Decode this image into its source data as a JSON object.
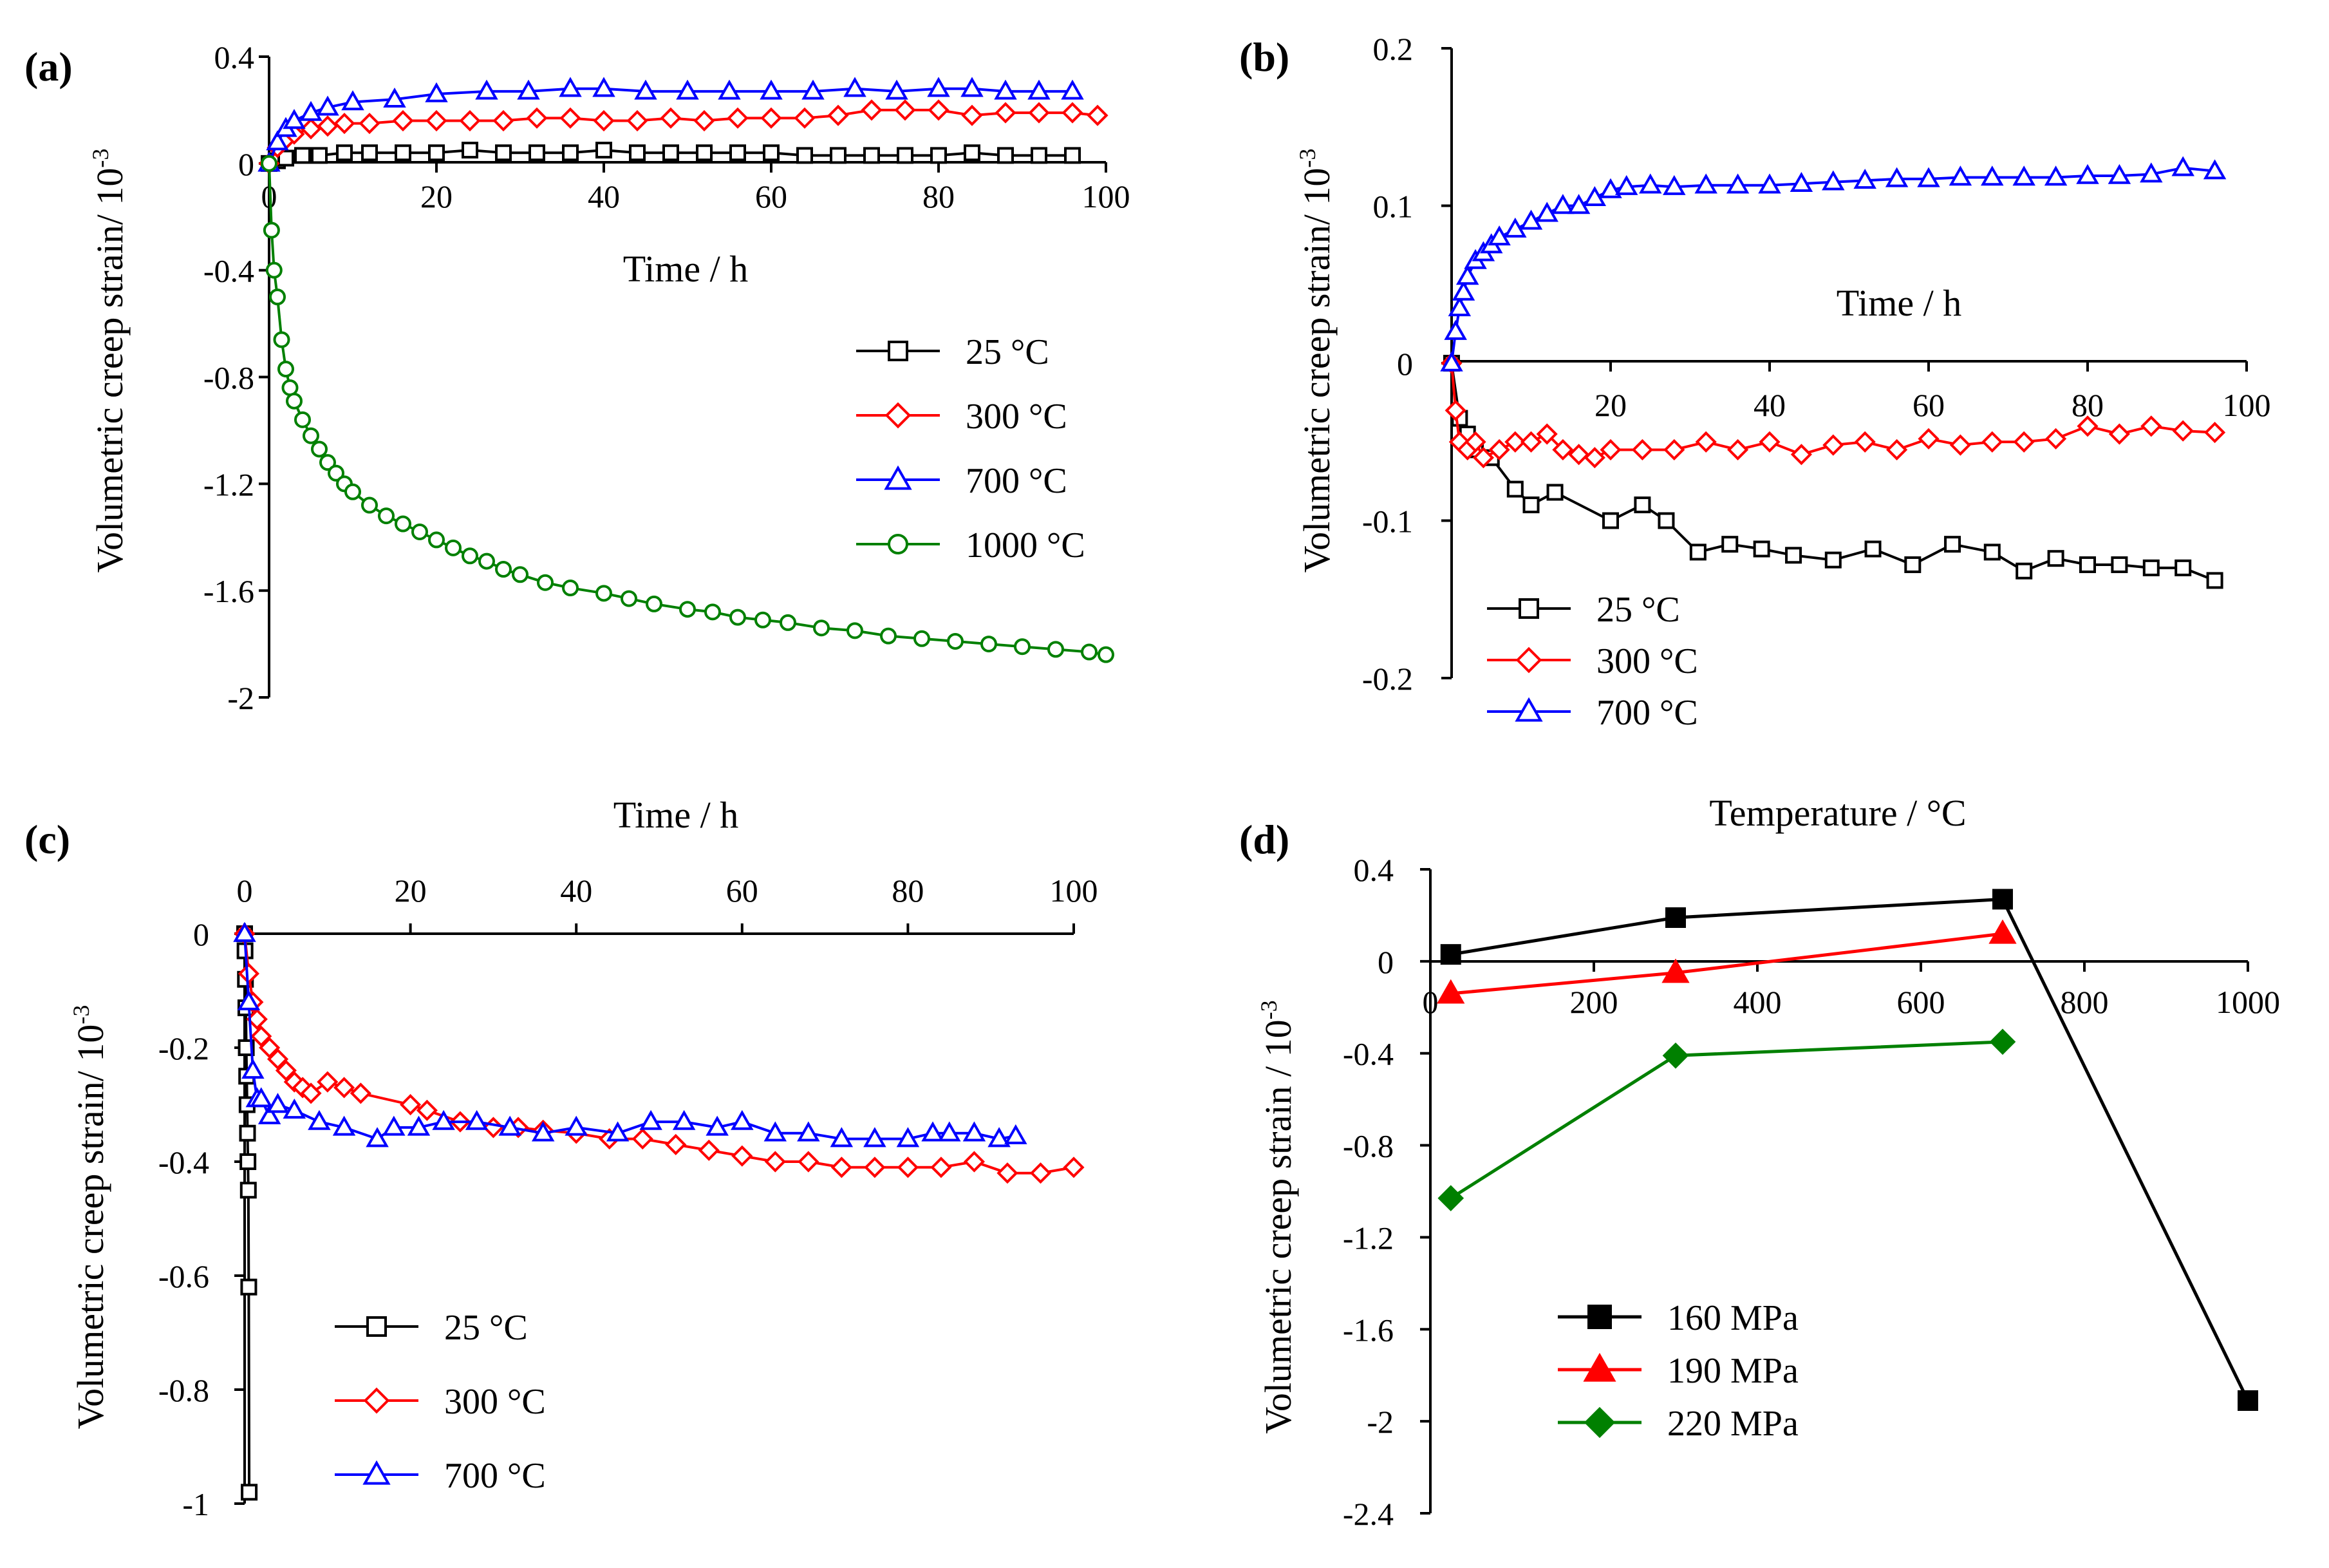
{
  "figure": {
    "panels": [
      "(a)",
      "(b)",
      "(c)",
      "(d)"
    ]
  },
  "chart_data": [
    {
      "panel": "(a)",
      "type": "line",
      "xlabel": "Time / h",
      "ylabel": "Volumetric creep strain/ 10",
      "ylabel_exp": "-3",
      "xlim": [
        0,
        100
      ],
      "ylim": [
        -2,
        0.4
      ],
      "xticks": [
        0,
        20,
        40,
        60,
        80,
        100
      ],
      "yticks": [
        0.4,
        0,
        -0.4,
        -0.8,
        -1.2,
        -1.6,
        -2
      ],
      "xtick_labels": [
        "0",
        "20",
        "40",
        "60",
        "80",
        "100"
      ],
      "ytick_labels": [
        "0.4",
        "0",
        "-0.4",
        "-0.8",
        "-1.2",
        "-1.6",
        "-2"
      ],
      "legend_position": "right",
      "series": [
        {
          "name": "25 °C",
          "color": "#000000",
          "marker": "square",
          "x": [
            0,
            1,
            2,
            4,
            6,
            9,
            12,
            16,
            20,
            24,
            28,
            32,
            36,
            40,
            44,
            48,
            52,
            56,
            60,
            64,
            68,
            72,
            76,
            80,
            84,
            88,
            92,
            96
          ],
          "y": [
            0,
            0.01,
            0.02,
            0.03,
            0.03,
            0.04,
            0.04,
            0.04,
            0.04,
            0.05,
            0.04,
            0.04,
            0.04,
            0.05,
            0.04,
            0.04,
            0.04,
            0.04,
            0.04,
            0.03,
            0.03,
            0.03,
            0.03,
            0.03,
            0.04,
            0.03,
            0.03,
            0.03
          ]
        },
        {
          "name": "300 °C",
          "color": "#ff0000",
          "marker": "diamond",
          "x": [
            0,
            1,
            2,
            3,
            5,
            7,
            9,
            12,
            16,
            20,
            24,
            28,
            32,
            36,
            40,
            44,
            48,
            52,
            56,
            60,
            64,
            68,
            72,
            76,
            80,
            84,
            88,
            92,
            96,
            99
          ],
          "y": [
            0,
            0.06,
            0.09,
            0.11,
            0.13,
            0.14,
            0.15,
            0.15,
            0.16,
            0.16,
            0.16,
            0.16,
            0.17,
            0.17,
            0.16,
            0.16,
            0.17,
            0.16,
            0.17,
            0.17,
            0.17,
            0.18,
            0.2,
            0.2,
            0.2,
            0.18,
            0.19,
            0.19,
            0.19,
            0.18
          ]
        },
        {
          "name": "700 °C",
          "color": "#0000ff",
          "marker": "triangle",
          "x": [
            0,
            1,
            2,
            3,
            5,
            7,
            10,
            15,
            20,
            26,
            31,
            36,
            40,
            45,
            50,
            55,
            60,
            65,
            70,
            75,
            80,
            84,
            88,
            92,
            96
          ],
          "y": [
            0,
            0.08,
            0.13,
            0.16,
            0.19,
            0.21,
            0.23,
            0.24,
            0.26,
            0.27,
            0.27,
            0.28,
            0.28,
            0.27,
            0.27,
            0.27,
            0.27,
            0.27,
            0.28,
            0.27,
            0.28,
            0.28,
            0.27,
            0.27,
            0.27
          ]
        },
        {
          "name": "1000 °C",
          "color": "#008000",
          "marker": "circle",
          "x": [
            0,
            0.3,
            0.6,
            1,
            1.5,
            2,
            2.5,
            3,
            4,
            5,
            6,
            7,
            8,
            9,
            10,
            12,
            14,
            16,
            18,
            20,
            22,
            24,
            26,
            28,
            30,
            33,
            36,
            40,
            43,
            46,
            50,
            53,
            56,
            59,
            62,
            66,
            70,
            74,
            78,
            82,
            86,
            90,
            94,
            98,
            100
          ],
          "y": [
            0,
            -0.25,
            -0.4,
            -0.5,
            -0.66,
            -0.77,
            -0.84,
            -0.89,
            -0.96,
            -1.02,
            -1.07,
            -1.12,
            -1.16,
            -1.2,
            -1.23,
            -1.28,
            -1.32,
            -1.35,
            -1.38,
            -1.41,
            -1.44,
            -1.47,
            -1.49,
            -1.52,
            -1.54,
            -1.57,
            -1.59,
            -1.61,
            -1.63,
            -1.65,
            -1.67,
            -1.68,
            -1.7,
            -1.71,
            -1.72,
            -1.74,
            -1.75,
            -1.77,
            -1.78,
            -1.79,
            -1.8,
            -1.81,
            -1.82,
            -1.83,
            -1.84
          ]
        }
      ]
    },
    {
      "panel": "(b)",
      "type": "line",
      "xlabel": "Time / h",
      "ylabel": "Volumetric creep strain/ 10",
      "ylabel_exp": "-3",
      "xlim": [
        0,
        100
      ],
      "ylim": [
        -0.2,
        0.2
      ],
      "xticks": [
        20,
        40,
        60,
        80,
        100
      ],
      "yticks": [
        0.2,
        0.1,
        0,
        -0.1,
        -0.2
      ],
      "xtick_labels": [
        "20",
        "40",
        "60",
        "80",
        "100"
      ],
      "ytick_labels": [
        "0.2",
        "0.1",
        "0",
        "-0.1",
        "-0.2"
      ],
      "legend_position": "bottom-left",
      "series": [
        {
          "name": "25 °C",
          "color": "#000000",
          "marker": "square",
          "x": [
            0,
            1,
            2,
            3,
            5,
            8,
            10,
            13,
            20,
            24,
            27,
            31,
            35,
            39,
            43,
            48,
            53,
            58,
            63,
            68,
            72,
            76,
            80,
            84,
            88,
            92,
            96
          ],
          "y": [
            0,
            -0.035,
            -0.045,
            -0.055,
            -0.06,
            -0.08,
            -0.09,
            -0.082,
            -0.1,
            -0.09,
            -0.1,
            -0.12,
            -0.115,
            -0.118,
            -0.122,
            -0.125,
            -0.118,
            -0.128,
            -0.115,
            -0.12,
            -0.132,
            -0.124,
            -0.128,
            -0.128,
            -0.13,
            -0.13,
            -0.138
          ]
        },
        {
          "name": "300 °C",
          "color": "#ff0000",
          "marker": "diamond",
          "x": [
            0,
            0.5,
            1,
            2,
            3,
            4,
            6,
            8,
            10,
            12,
            14,
            16,
            18,
            20,
            24,
            28,
            32,
            36,
            40,
            44,
            48,
            52,
            56,
            60,
            64,
            68,
            72,
            76,
            80,
            84,
            88,
            92,
            96
          ],
          "y": [
            0,
            -0.03,
            -0.05,
            -0.055,
            -0.05,
            -0.06,
            -0.055,
            -0.05,
            -0.05,
            -0.045,
            -0.055,
            -0.058,
            -0.06,
            -0.055,
            -0.055,
            -0.055,
            -0.05,
            -0.055,
            -0.05,
            -0.058,
            -0.052,
            -0.05,
            -0.055,
            -0.048,
            -0.052,
            -0.05,
            -0.05,
            -0.048,
            -0.04,
            -0.045,
            -0.04,
            -0.043,
            -0.044
          ]
        },
        {
          "name": "700 °C",
          "color": "#0000ff",
          "marker": "triangle",
          "x": [
            0,
            0.5,
            1,
            1.5,
            2,
            3,
            4,
            5,
            6,
            8,
            10,
            12,
            14,
            16,
            18,
            20,
            22,
            25,
            28,
            32,
            36,
            40,
            44,
            48,
            52,
            56,
            60,
            64,
            68,
            72,
            76,
            80,
            84,
            88,
            92,
            96
          ],
          "y": [
            0,
            0.02,
            0.035,
            0.045,
            0.055,
            0.065,
            0.07,
            0.075,
            0.08,
            0.085,
            0.09,
            0.095,
            0.1,
            0.1,
            0.105,
            0.11,
            0.112,
            0.113,
            0.112,
            0.113,
            0.113,
            0.113,
            0.114,
            0.115,
            0.116,
            0.117,
            0.117,
            0.118,
            0.118,
            0.118,
            0.118,
            0.119,
            0.119,
            0.12,
            0.124,
            0.122
          ]
        }
      ]
    },
    {
      "panel": "(c)",
      "type": "line",
      "xlabel": "Time / h",
      "ylabel": "Volumetric creep strain/ 10",
      "ylabel_exp": "-3",
      "xlim": [
        0,
        100
      ],
      "ylim": [
        -1,
        0
      ],
      "xticks": [
        0,
        20,
        40,
        60,
        80,
        100
      ],
      "yticks": [
        0,
        -0.2,
        -0.4,
        -0.6,
        -0.8,
        -1
      ],
      "xtick_labels": [
        "0",
        "20",
        "40",
        "60",
        "80",
        "100"
      ],
      "ytick_labels": [
        "0",
        "-0.2",
        "-0.4",
        "-0.6",
        "-0.8",
        "-1"
      ],
      "legend_position": "bottom-left",
      "series": [
        {
          "name": "25 °C",
          "color": "#000000",
          "marker": "square",
          "x": [
            0,
            0.05,
            0.1,
            0.15,
            0.2,
            0.25,
            0.3,
            0.35,
            0.4,
            0.45,
            0.5,
            0.55
          ],
          "y": [
            0,
            -0.03,
            -0.08,
            -0.13,
            -0.2,
            -0.25,
            -0.3,
            -0.35,
            -0.4,
            -0.45,
            -0.62,
            -0.98
          ]
        },
        {
          "name": "300 °C",
          "color": "#ff0000",
          "marker": "diamond",
          "x": [
            0,
            0.5,
            1,
            1.5,
            2,
            3,
            4,
            5,
            6,
            7,
            8,
            10,
            12,
            14,
            20,
            22,
            26,
            30,
            33,
            36,
            40,
            44,
            48,
            52,
            56,
            60,
            64,
            68,
            72,
            76,
            80,
            84,
            88,
            92,
            96,
            100
          ],
          "y": [
            0,
            -0.07,
            -0.12,
            -0.15,
            -0.18,
            -0.2,
            -0.22,
            -0.24,
            -0.26,
            -0.27,
            -0.28,
            -0.26,
            -0.27,
            -0.28,
            -0.3,
            -0.31,
            -0.33,
            -0.34,
            -0.34,
            -0.345,
            -0.35,
            -0.36,
            -0.36,
            -0.37,
            -0.38,
            -0.39,
            -0.4,
            -0.4,
            -0.41,
            -0.41,
            -0.41,
            -0.41,
            -0.4,
            -0.42,
            -0.42,
            -0.41
          ]
        },
        {
          "name": "700 °C",
          "color": "#0000ff",
          "marker": "triangle",
          "x": [
            0,
            0.5,
            1,
            1.5,
            2,
            3,
            4,
            6,
            9,
            12,
            16,
            18,
            21,
            24,
            28,
            32,
            36,
            40,
            45,
            49,
            53,
            57,
            60,
            64,
            68,
            72,
            76,
            80,
            83,
            85,
            88,
            91,
            93
          ],
          "y": [
            0,
            -0.12,
            -0.24,
            -0.29,
            -0.29,
            -0.32,
            -0.3,
            -0.31,
            -0.33,
            -0.34,
            -0.36,
            -0.34,
            -0.34,
            -0.33,
            -0.33,
            -0.34,
            -0.35,
            -0.34,
            -0.35,
            -0.33,
            -0.33,
            -0.34,
            -0.33,
            -0.35,
            -0.35,
            -0.36,
            -0.36,
            -0.36,
            -0.35,
            -0.35,
            -0.35,
            -0.36,
            -0.355
          ]
        }
      ]
    },
    {
      "panel": "(d)",
      "type": "line",
      "xlabel": "Temperature / °C",
      "ylabel": "Volumetric creep strain / 10",
      "ylabel_exp": "-3",
      "xlim": [
        0,
        1000
      ],
      "ylim": [
        -2.4,
        0.4
      ],
      "xticks": [
        0,
        200,
        400,
        600,
        800,
        1000
      ],
      "yticks": [
        0.4,
        0,
        -0.4,
        -0.8,
        -1.2,
        -1.6,
        -2,
        -2.4
      ],
      "xtick_labels": [
        "0",
        "200",
        "400",
        "600",
        "800",
        "1000"
      ],
      "ytick_labels": [
        "0.4",
        "0",
        "-0.4",
        "-0.8",
        "-1.2",
        "-1.6",
        "-2",
        "-2.4"
      ],
      "legend_position": "bottom-left",
      "series": [
        {
          "name": "160 MPa",
          "color": "#000000",
          "marker": "filled-square",
          "x": [
            25,
            300,
            700,
            1000
          ],
          "y": [
            0.03,
            0.19,
            0.27,
            -1.91
          ]
        },
        {
          "name": "190 MPa",
          "color": "#ff0000",
          "marker": "filled-triangle",
          "x": [
            25,
            300,
            700
          ],
          "y": [
            -0.14,
            -0.05,
            0.12
          ]
        },
        {
          "name": "220 MPa",
          "color": "#008000",
          "marker": "filled-diamond",
          "x": [
            25,
            300,
            700
          ],
          "y": [
            -1.03,
            -0.41,
            -0.35
          ]
        }
      ]
    }
  ]
}
